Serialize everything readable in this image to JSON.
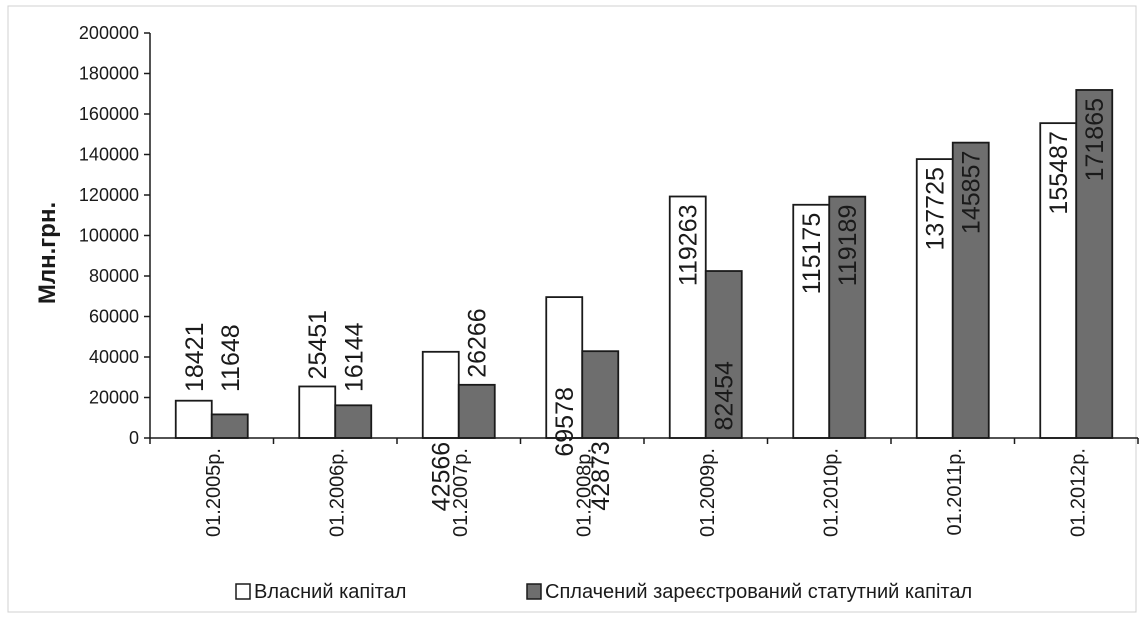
{
  "chart_data": {
    "type": "bar",
    "title": "",
    "xlabel": "",
    "ylabel": "Млн.грн.",
    "ylim": [
      0,
      200000
    ],
    "y_ticks": [
      0,
      20000,
      40000,
      60000,
      80000,
      100000,
      120000,
      140000,
      160000,
      180000,
      200000
    ],
    "grid": false,
    "legend_position": "bottom",
    "categories": [
      "01.2005р.",
      "01.2006р.",
      "01.2007р.",
      "01.2008р.",
      "01.2009р.",
      "01.2010р.",
      "01.2011р.",
      "01.2012р."
    ],
    "series": [
      {
        "name": "Власний капітал",
        "color": "#ffffff",
        "values": [
          18421,
          25451,
          42566,
          69578,
          119263,
          115175,
          137725,
          155487
        ]
      },
      {
        "name": "Сплачений зареєстрований статутний капітал",
        "color": "#6e6e6e",
        "values": [
          11648,
          16144,
          26266,
          42873,
          82454,
          119189,
          145857,
          171865
        ]
      }
    ]
  }
}
